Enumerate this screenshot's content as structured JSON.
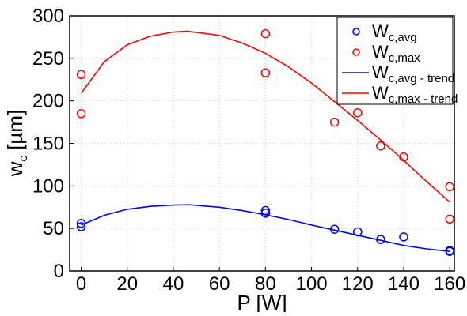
{
  "chart_data": {
    "type": "scatter",
    "xlabel": "P [W]",
    "ylabel": {
      "main": "w",
      "sub": "c",
      "unit": " [µm]"
    },
    "xlim": [
      -5,
      162
    ],
    "ylim": [
      0,
      300
    ],
    "xticks": [
      0,
      20,
      40,
      60,
      80,
      100,
      120,
      140,
      160
    ],
    "yticks": [
      0,
      50,
      100,
      150,
      200,
      250,
      300
    ],
    "grid": true,
    "legend_placement": "top-right",
    "series": [
      {
        "name": "W",
        "name_sub": "c,avg",
        "kind": "markers",
        "marker": "circle",
        "color": "#0000ff",
        "points": [
          [
            0,
            56
          ],
          [
            0,
            52
          ],
          [
            80,
            71
          ],
          [
            80,
            68
          ],
          [
            110,
            49
          ],
          [
            120,
            46
          ],
          [
            130,
            37
          ],
          [
            140,
            40
          ],
          [
            160,
            23
          ],
          [
            160,
            24
          ]
        ]
      },
      {
        "name": "W",
        "name_sub": "c,max",
        "kind": "markers",
        "marker": "circle",
        "color": "#ff0000",
        "points": [
          [
            0,
            231
          ],
          [
            0,
            185
          ],
          [
            80,
            279
          ],
          [
            80,
            233
          ],
          [
            110,
            175
          ],
          [
            120,
            186
          ],
          [
            130,
            147
          ],
          [
            140,
            134
          ],
          [
            160,
            99
          ],
          [
            160,
            61
          ]
        ]
      },
      {
        "name": "W",
        "name_sub": "c,avg - trend",
        "kind": "line",
        "color": "#0000ff",
        "points": [
          [
            0,
            54
          ],
          [
            10,
            65.5
          ],
          [
            20,
            72.5
          ],
          [
            30,
            76
          ],
          [
            40,
            77.5
          ],
          [
            47,
            77.8
          ],
          [
            60,
            75
          ],
          [
            70,
            71
          ],
          [
            80,
            66
          ],
          [
            90,
            60.5
          ],
          [
            100,
            54
          ],
          [
            110,
            48
          ],
          [
            120,
            42
          ],
          [
            130,
            36
          ],
          [
            140,
            30
          ],
          [
            150,
            26
          ],
          [
            160,
            23
          ]
        ]
      },
      {
        "name": "W",
        "name_sub": "c,max - trend",
        "kind": "line",
        "color": "#ff0000",
        "points": [
          [
            0,
            209
          ],
          [
            10,
            246
          ],
          [
            20,
            266
          ],
          [
            30,
            276
          ],
          [
            40,
            281
          ],
          [
            46,
            282
          ],
          [
            60,
            277
          ],
          [
            70,
            268
          ],
          [
            80,
            256
          ],
          [
            90,
            240
          ],
          [
            100,
            221
          ],
          [
            110,
            199
          ],
          [
            120,
            177
          ],
          [
            130,
            154
          ],
          [
            140,
            130
          ],
          [
            150,
            105
          ],
          [
            160,
            81
          ]
        ]
      }
    ]
  }
}
